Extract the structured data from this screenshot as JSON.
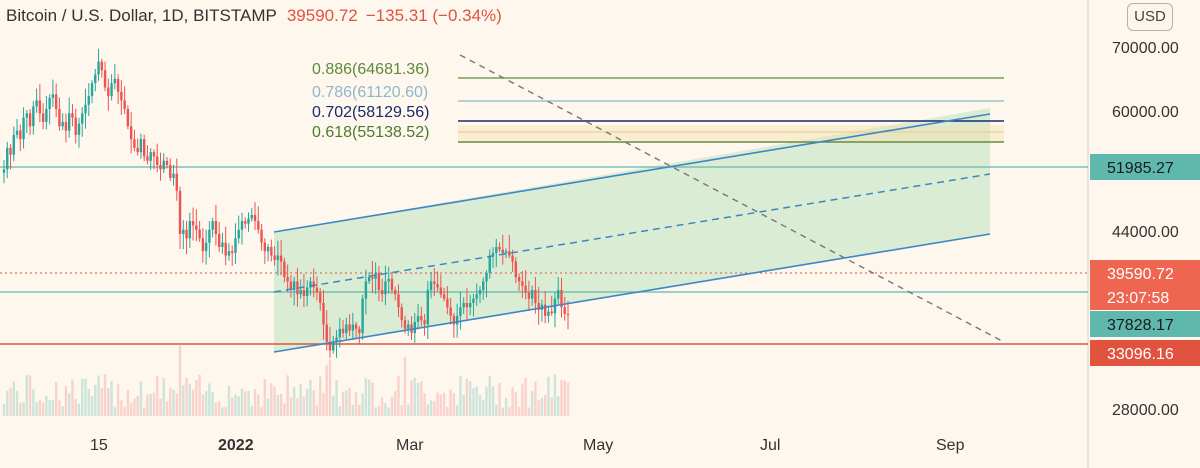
{
  "header": {
    "title": "Bitcoin / U.S. Dollar, 1D, BITSTAMP",
    "price": "39590.72",
    "change": "−135.31 (−0.34%)"
  },
  "currency_button": "USD",
  "colors": {
    "up": "#26a69a",
    "down": "#ef5350",
    "channel": "#3d86c6",
    "channel_fill": "#cfe5c8",
    "support_line": "#5fb8ad",
    "red_line": "#e0533e",
    "fib_886": "#5e8a3a",
    "fib_786": "#8fb6c9",
    "fib_702": "#1a2a6c",
    "fib_618": "#4e7a2e",
    "fib_618_band": "#e8c98a",
    "badge_support": "#5fb8ad",
    "badge_price": "#ef6650",
    "badge_red": "#e0533e"
  },
  "chart_data": {
    "type": "candlestick",
    "y_axis": {
      "ticks": [
        70000,
        60000,
        44000,
        28000
      ],
      "tick_labels": [
        "70000.00",
        "60000.00",
        "44000.00",
        "28000.00"
      ]
    },
    "x_axis": {
      "tick_labels": [
        "15",
        "2022",
        "Mar",
        "May",
        "Jul",
        "Sep"
      ]
    },
    "fib_levels": [
      {
        "label": "0.886(64681.36)",
        "value": 64681.36,
        "color_key": "fib_886"
      },
      {
        "label": "0.786(61120.60)",
        "value": 61120.6,
        "color_key": "fib_786"
      },
      {
        "label": "0.702(58129.56)",
        "value": 58129.56,
        "color_key": "fib_702"
      },
      {
        "label": "0.618(55138.52)",
        "value": 55138.52,
        "color_key": "fib_618"
      }
    ],
    "price_badges": [
      {
        "value": 51985.27,
        "label": "51985.27",
        "color_key": "badge_support"
      },
      {
        "value": 39590.72,
        "label": "39590.72",
        "sub": "23:07:58",
        "color_key": "badge_price"
      },
      {
        "value": 37828.17,
        "label": "37828.17",
        "color_key": "badge_support"
      },
      {
        "value": 33096.16,
        "label": "33096.16",
        "color_key": "badge_red"
      }
    ],
    "closes": [
      56500,
      59000,
      58200,
      60500,
      61000,
      60000,
      62500,
      63000,
      61500,
      63800,
      64500,
      63000,
      62000,
      63500,
      64800,
      65200,
      63500,
      61500,
      62000,
      61000,
      63000,
      62500,
      60500,
      61800,
      63000,
      64000,
      65000,
      66500,
      67500,
      69000,
      68000,
      66000,
      65000,
      66500,
      67000,
      65500,
      64500,
      63500,
      61500,
      60000,
      59000,
      58500,
      60000,
      58000,
      57500,
      58500,
      58000,
      57000,
      56500,
      57500,
      57000,
      55500,
      56000,
      54000,
      49000,
      49500,
      48500,
      50500,
      50000,
      49500,
      48500,
      47000,
      48000,
      49500,
      50500,
      49000,
      47500,
      48000,
      46500,
      47000,
      46800,
      48500,
      49500,
      50500,
      50200,
      50800,
      51200,
      50500,
      49500,
      48000,
      47000,
      47500,
      46500,
      46000,
      46500,
      45800,
      44000,
      43500,
      42500,
      43500,
      42000,
      42500,
      41800,
      42800,
      43500,
      42800,
      42200,
      41000,
      38500,
      36500,
      35500,
      36500,
      37000,
      38000,
      37500,
      38500,
      37800,
      38500,
      38000,
      37500,
      41500,
      43500,
      44000,
      43800,
      44500,
      42500,
      42000,
      43500,
      43800,
      42500,
      42000,
      40500,
      39000,
      38000,
      38500,
      37500,
      38800,
      39500,
      39000,
      38500,
      42500,
      43500,
      43200,
      42800,
      42000,
      41500,
      40500,
      39500,
      38500,
      39500,
      40500,
      41000,
      40500,
      41000,
      41500,
      42000,
      42500,
      43500,
      44500,
      46500,
      46800,
      47500,
      47200,
      46800,
      47000,
      46500,
      45800,
      44000,
      43500,
      43000,
      42200,
      41500,
      42500,
      41000,
      40200,
      40800,
      39500,
      40000,
      39800,
      41500,
      42500,
      40500,
      39726,
      39590
    ]
  }
}
